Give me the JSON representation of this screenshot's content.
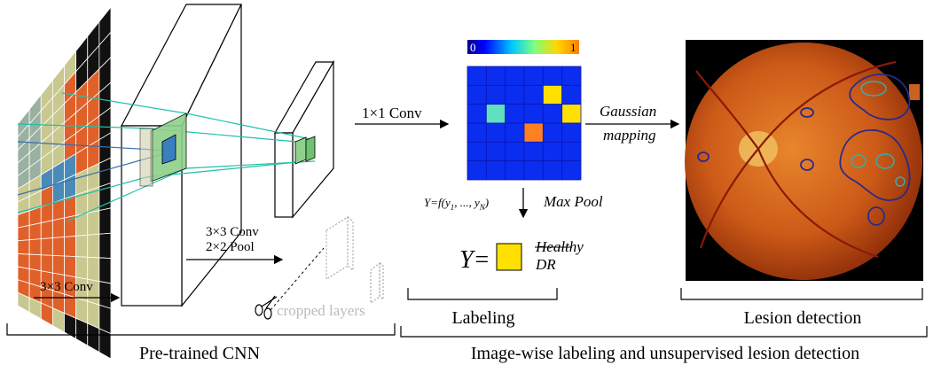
{
  "cnn": {
    "conv1": "3×3 Conv",
    "conv2": "3×3 Conv",
    "pool": "2×2 Pool",
    "cropped": "cropped layers",
    "caption": "Pre-trained CNN"
  },
  "labeling": {
    "conv": "1×1 Conv",
    "scale_min": "0",
    "scale_max": "1",
    "formula": {
      "lhs": "Y=f(y",
      "sub1": "1",
      "mid": ", ..., y",
      "subN": "N",
      "end": ")"
    },
    "maxpool": "Max Pool",
    "output": "Y=",
    "classes": [
      "Healthy",
      "DR"
    ],
    "caption": "Labeling"
  },
  "lesion": {
    "gaussian": "Gaussian",
    "mapping": "mapping",
    "caption": "Lesion detection"
  },
  "footer": "Image-wise labeling and unsupervised lesion detection"
}
